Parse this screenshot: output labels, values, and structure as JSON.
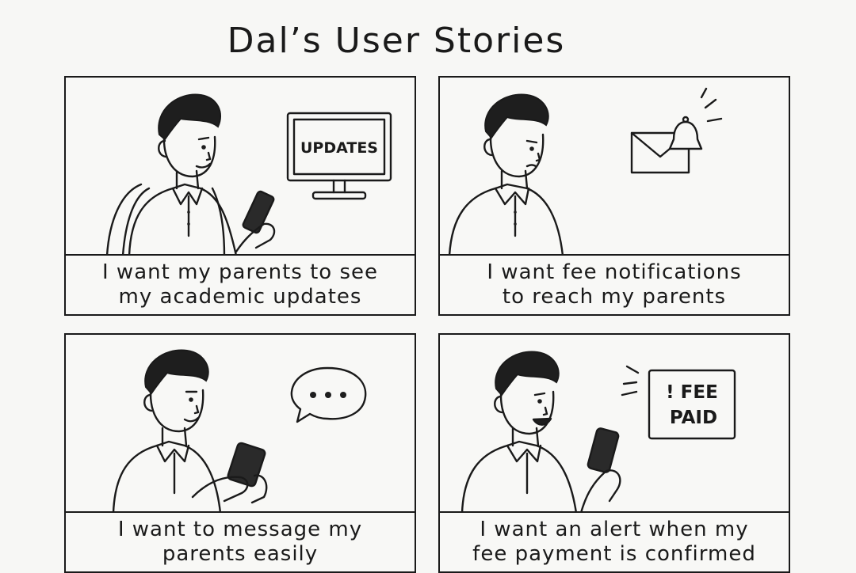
{
  "title": "Dal’s User Stories",
  "panels": [
    {
      "caption": [
        "I want my parents to see",
        "my academic updates"
      ],
      "sign": "UPDATES"
    },
    {
      "caption": [
        "I want fee notifications",
        "to reach my parents"
      ]
    },
    {
      "caption": [
        "I want to message my",
        "parents easily"
      ]
    },
    {
      "caption": [
        "I want an alert when my",
        "fee payment is confirmed"
      ],
      "sign": [
        "! FEE",
        "PAID"
      ]
    }
  ],
  "icons": [
    "computer-monitor-icon",
    "envelope-bell-icon",
    "speech-bubble-icon",
    "smartphone-icon",
    "alert-sign-icon"
  ]
}
